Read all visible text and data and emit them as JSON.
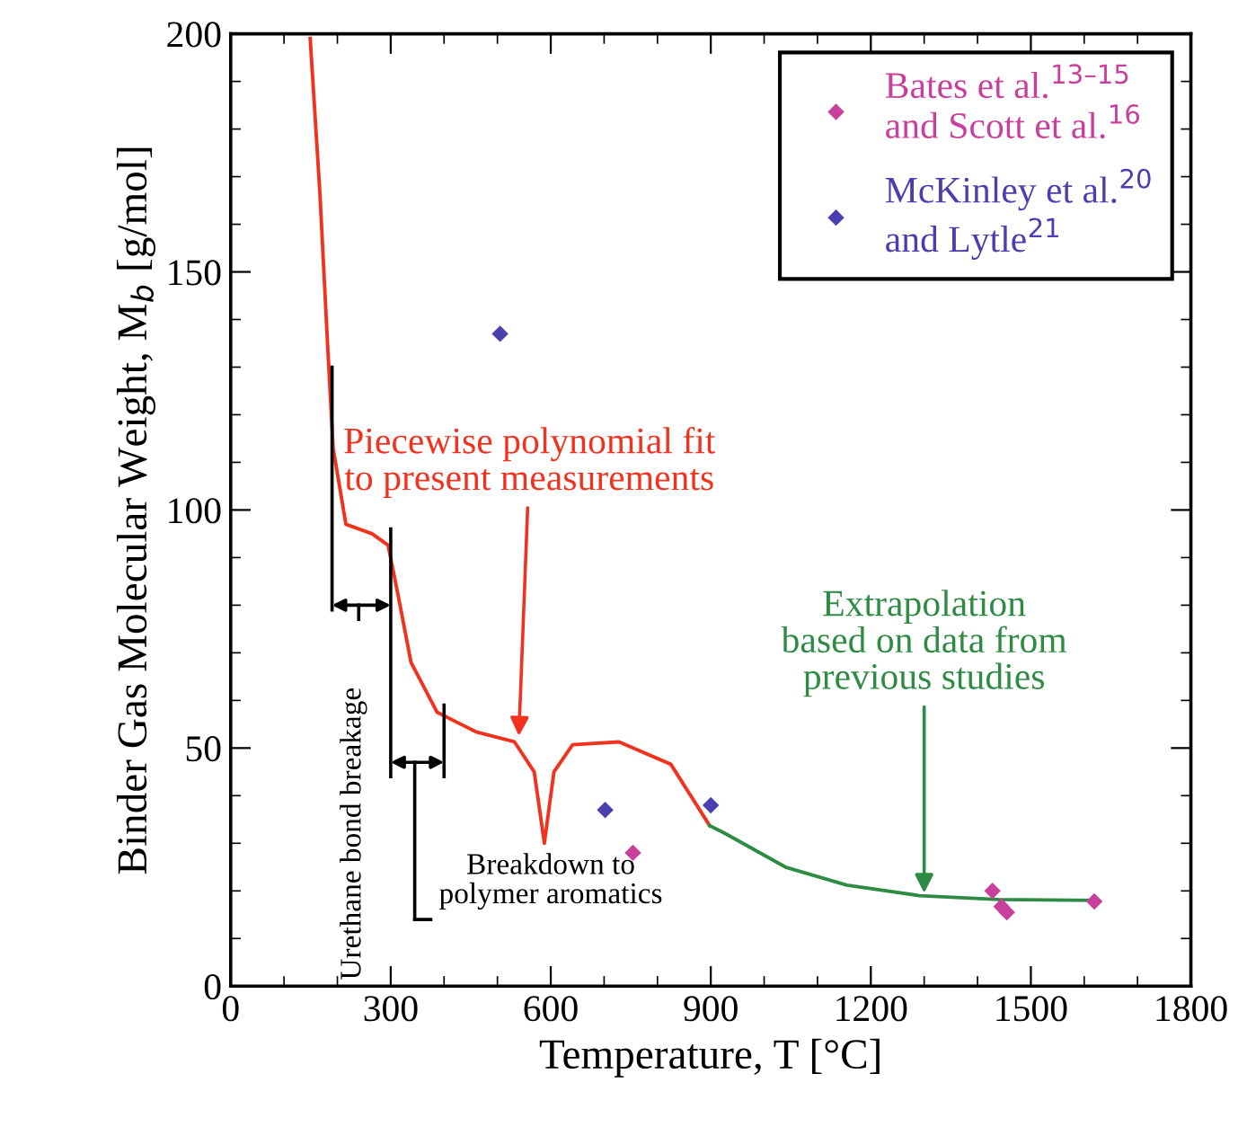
{
  "chart_data": {
    "type": "line",
    "xlabel": "Temperature, T [°C]",
    "ylabel": "Binder Gas Molecular Weight, M$_{b}$ [g/mol]",
    "xlim": [
      0,
      1800
    ],
    "ylim": [
      0,
      200
    ],
    "xticks": [
      0,
      {
        "value": 100,
        "label": null
      },
      {
        "value": 200,
        "label": null
      },
      300,
      {
        "value": 400,
        "label": null
      },
      {
        "value": 500,
        "label": null
      },
      600,
      {
        "value": 700,
        "label": null
      },
      {
        "value": 800,
        "label": null
      },
      900,
      {
        "value": 1000,
        "label": null
      },
      {
        "value": 1100,
        "label": null
      },
      1200,
      {
        "value": 1300,
        "label": null
      },
      {
        "value": 1400,
        "label": null
      },
      1500,
      {
        "value": 1600,
        "label": null
      },
      {
        "value": 1700,
        "label": null
      },
      1800
    ],
    "yticks": [
      0,
      {
        "value": 10,
        "label": null
      },
      {
        "value": 20,
        "label": null
      },
      {
        "value": 30,
        "label": null
      },
      {
        "value": 40,
        "label": null
      },
      50,
      {
        "value": 60,
        "label": null
      },
      {
        "value": 70,
        "label": null
      },
      {
        "value": 80,
        "label": null
      },
      {
        "value": 90,
        "label": null
      },
      100,
      {
        "value": 110,
        "label": null
      },
      {
        "value": 120,
        "label": null
      },
      {
        "value": 130,
        "label": null
      },
      {
        "value": 140,
        "label": null
      },
      150,
      {
        "value": 160,
        "label": null
      },
      {
        "value": 170,
        "label": null
      },
      {
        "value": 180,
        "label": null
      },
      {
        "value": 190,
        "label": null
      },
      200
    ],
    "grid": false,
    "legend": "top right",
    "series": [
      {
        "color": "#f0321e",
        "x": [
          149,
          167,
          182,
          192,
          216,
          265,
          295,
          314,
          338,
          387,
          460,
          532,
          569,
          588,
          606,
          641,
          728,
          825,
          898
        ],
        "values": [
          199,
          167,
          134,
          113,
          97,
          95,
          92.6,
          82,
          68,
          57.5,
          53.4,
          51.3,
          45,
          30,
          45,
          50.7,
          51.3,
          46.6,
          33.7
        ]
      },
      {
        "color": "#2e8b44",
        "x": [
          898,
          928,
          1040,
          1155,
          1291,
          1439,
          1620
        ],
        "values": [
          33.7,
          32,
          25,
          21.2,
          19,
          18.2,
          18
        ]
      },
      {
        "type": "scatter",
        "name": "Bates et al.$^{13–15}$\nand Scott et al.$^{16}$",
        "color": "#c8409c",
        "marker": "diamond",
        "x": [
          754,
          1428,
          1445,
          1455,
          1619
        ],
        "values": [
          28,
          20,
          16.7,
          15.5,
          17.8
        ]
      },
      {
        "type": "scatter",
        "name": "McKinley et al.$^{20}$\nand Lytle$^{21}$",
        "color": "#4b3fb0",
        "marker": "diamond",
        "x": [
          505,
          702,
          900
        ],
        "values": [
          137,
          37,
          38
        ]
      }
    ],
    "annotations": [
      {
        "text": "Piecewise polynomial fit\nto present measurements",
        "x": 540,
        "y": 52
      },
      {
        "text": "Extrapolation\nbased on data from\nprevious studies",
        "x": 1300,
        "y": 19
      },
      "Urethane bond breakage",
      "Breakdown to\npolymer aromatics"
    ]
  }
}
